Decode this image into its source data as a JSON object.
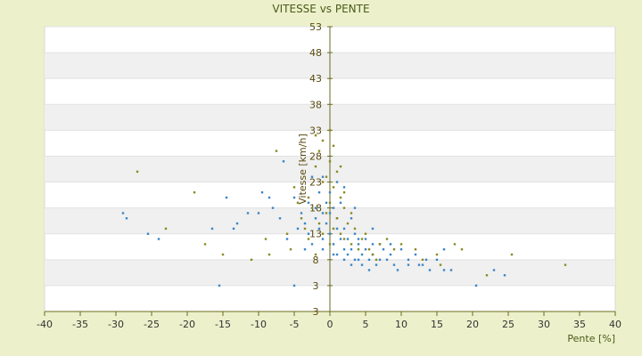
{
  "chart_data": {
    "type": "scatter",
    "title": "VITESSE vs PENTE",
    "xlabel": "Pente [%]",
    "ylabel": "Vitesse [km/h]",
    "xlim": [
      -40,
      40
    ],
    "x_ticks": [
      "-40",
      "-35",
      "-30",
      "-25",
      "-20",
      "-15",
      "-10",
      "-5",
      "0",
      "5",
      "10",
      "15",
      "20",
      "25",
      "30",
      "35",
      "40"
    ],
    "y_ticks": [
      "3",
      "3",
      "8",
      "13",
      "18",
      "23",
      "28",
      "33",
      "38",
      "43",
      "48",
      "53"
    ],
    "grid": "horizontal alternating bands",
    "legend": "none",
    "colors": {
      "series_blue": "#3a86c8",
      "series_olive": "#8a8a22",
      "band_alt": "#f0f0f0",
      "axis": "#6a6a20"
    },
    "series": [
      {
        "color": "series_blue",
        "points": [
          [
            -29,
            17
          ],
          [
            -28.5,
            16
          ],
          [
            -25.5,
            13
          ],
          [
            -24,
            12
          ],
          [
            -15.5,
            3
          ],
          [
            -5,
            3
          ],
          [
            -16.5,
            14
          ],
          [
            -13.5,
            14
          ],
          [
            -13,
            15
          ],
          [
            -11.5,
            17
          ],
          [
            -10,
            17
          ],
          [
            -9.5,
            21
          ],
          [
            -8.5,
            20
          ],
          [
            -8,
            18
          ],
          [
            -7,
            16
          ],
          [
            -6,
            12
          ],
          [
            -5,
            20
          ],
          [
            -4.5,
            14
          ],
          [
            -4,
            17
          ],
          [
            -3.5,
            15
          ],
          [
            -3,
            13
          ],
          [
            -3,
            19
          ],
          [
            -2.5,
            24
          ],
          [
            -2,
            18
          ],
          [
            -2,
            16
          ],
          [
            -1.5,
            14
          ],
          [
            -1.5,
            21
          ],
          [
            -1,
            17
          ],
          [
            -1,
            12
          ],
          [
            -1,
            24
          ],
          [
            -0.5,
            19
          ],
          [
            -0.5,
            15
          ],
          [
            0,
            17
          ],
          [
            0,
            13
          ],
          [
            0,
            21
          ],
          [
            0.5,
            18
          ],
          [
            0.5,
            11
          ],
          [
            1,
            14
          ],
          [
            1,
            9
          ],
          [
            1,
            16
          ],
          [
            1.5,
            12
          ],
          [
            1.5,
            19
          ],
          [
            2,
            10
          ],
          [
            2,
            14
          ],
          [
            2.5,
            9
          ],
          [
            2.5,
            12
          ],
          [
            3,
            16
          ],
          [
            3,
            10
          ],
          [
            3.5,
            8
          ],
          [
            3.5,
            13
          ],
          [
            4,
            11
          ],
          [
            4,
            8
          ],
          [
            4.5,
            9
          ],
          [
            5,
            10
          ],
          [
            5,
            12
          ],
          [
            5.5,
            8
          ],
          [
            6,
            9
          ],
          [
            6,
            11
          ],
          [
            6.5,
            7
          ],
          [
            7,
            8
          ],
          [
            7.5,
            10
          ],
          [
            8,
            8
          ],
          [
            8.5,
            9
          ],
          [
            9,
            7
          ],
          [
            10,
            10
          ],
          [
            11,
            8
          ],
          [
            12,
            9
          ],
          [
            13,
            7
          ],
          [
            14,
            6
          ],
          [
            15,
            8
          ],
          [
            16,
            10
          ],
          [
            17,
            6
          ],
          [
            20.5,
            3
          ],
          [
            23,
            6
          ],
          [
            24.5,
            5
          ],
          [
            -14.5,
            20
          ],
          [
            -6.5,
            27
          ],
          [
            1,
            23
          ],
          [
            2,
            22
          ],
          [
            3.5,
            18
          ],
          [
            4,
            12
          ],
          [
            6,
            14
          ],
          [
            7,
            11
          ],
          [
            8.5,
            11
          ],
          [
            -3.5,
            10
          ],
          [
            -2.5,
            11
          ],
          [
            -1,
            10
          ],
          [
            0.5,
            9
          ],
          [
            2,
            8
          ],
          [
            3,
            7
          ],
          [
            4.5,
            7
          ],
          [
            5.5,
            6
          ],
          [
            9.5,
            6
          ],
          [
            11,
            7
          ],
          [
            12.5,
            7
          ],
          [
            13.5,
            8
          ],
          [
            16,
            6
          ]
        ]
      },
      {
        "color": "series_olive",
        "points": [
          [
            -27,
            25
          ],
          [
            -23,
            14
          ],
          [
            -19,
            21
          ],
          [
            -17.5,
            11
          ],
          [
            -15,
            9
          ],
          [
            -11,
            8
          ],
          [
            -9,
            12
          ],
          [
            -8.5,
            9
          ],
          [
            -6,
            13
          ],
          [
            -5.5,
            10
          ],
          [
            -5,
            22
          ],
          [
            -4.5,
            19
          ],
          [
            -4,
            16
          ],
          [
            -3.5,
            14
          ],
          [
            -3,
            12
          ],
          [
            -3,
            20
          ],
          [
            -2.5,
            18
          ],
          [
            -2,
            9
          ],
          [
            -2,
            26
          ],
          [
            -1.5,
            15
          ],
          [
            -1.5,
            29
          ],
          [
            -1,
            13
          ],
          [
            -1,
            31
          ],
          [
            -0.5,
            17
          ],
          [
            -0.5,
            24
          ],
          [
            0,
            11
          ],
          [
            0,
            19
          ],
          [
            0,
            27
          ],
          [
            0.5,
            14
          ],
          [
            0.5,
            22
          ],
          [
            1,
            16
          ],
          [
            1,
            25
          ],
          [
            1.5,
            13
          ],
          [
            1.5,
            20
          ],
          [
            2,
            12
          ],
          [
            2,
            18
          ],
          [
            2.5,
            15
          ],
          [
            3,
            11
          ],
          [
            3.5,
            14
          ],
          [
            4,
            10
          ],
          [
            5,
            13
          ],
          [
            6,
            9
          ],
          [
            7,
            11
          ],
          [
            8,
            12
          ],
          [
            10,
            11
          ],
          [
            12,
            10
          ],
          [
            15,
            9
          ],
          [
            17.5,
            11
          ],
          [
            18.5,
            10
          ],
          [
            22,
            5
          ],
          [
            25.5,
            9
          ],
          [
            33,
            7
          ],
          [
            -7.5,
            29
          ],
          [
            -2,
            32
          ],
          [
            0,
            33
          ],
          [
            0.5,
            30
          ],
          [
            1.5,
            26
          ],
          [
            -1,
            23
          ],
          [
            2,
            21
          ],
          [
            3,
            17
          ],
          [
            4.5,
            12
          ],
          [
            5.5,
            10
          ],
          [
            6.5,
            8
          ],
          [
            9,
            10
          ],
          [
            13,
            8
          ],
          [
            15.5,
            7
          ]
        ]
      }
    ]
  }
}
